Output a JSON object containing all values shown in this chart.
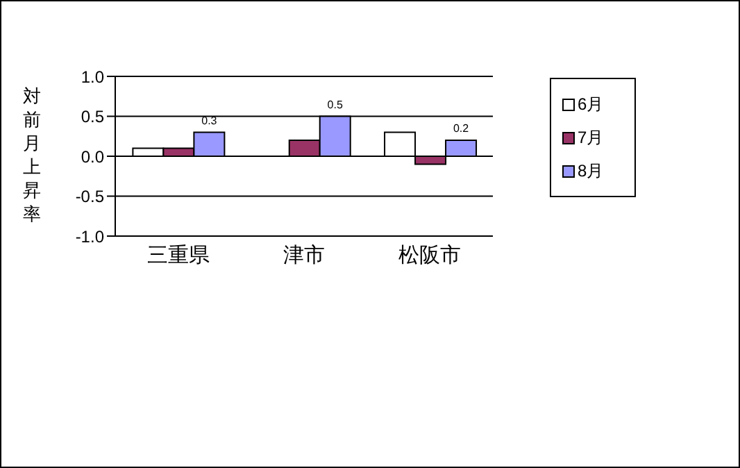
{
  "chart_data": {
    "type": "bar",
    "ylabel": "対前月上昇率",
    "categories": [
      "三重県",
      "津市",
      "松阪市"
    ],
    "series": [
      {
        "name": "6月",
        "color": "#ffffff",
        "values": [
          0.1,
          0.0,
          0.3
        ]
      },
      {
        "name": "7月",
        "color": "#993366",
        "values": [
          0.1,
          0.2,
          -0.1
        ]
      },
      {
        "name": "8月",
        "color": "#9999ff",
        "values": [
          0.3,
          0.5,
          0.2
        ],
        "value_labels": [
          "0.3",
          "0.5",
          "0.2"
        ]
      }
    ],
    "ylim": [
      -1.0,
      1.0
    ],
    "yticks": [
      {
        "value": -1,
        "label": "-1.0"
      },
      -0.5,
      {
        "value": 0,
        "label": "0.0"
      },
      0.5,
      {
        "value": 1,
        "label": "1.0"
      }
    ],
    "grid": "y",
    "legend": "top right"
  }
}
